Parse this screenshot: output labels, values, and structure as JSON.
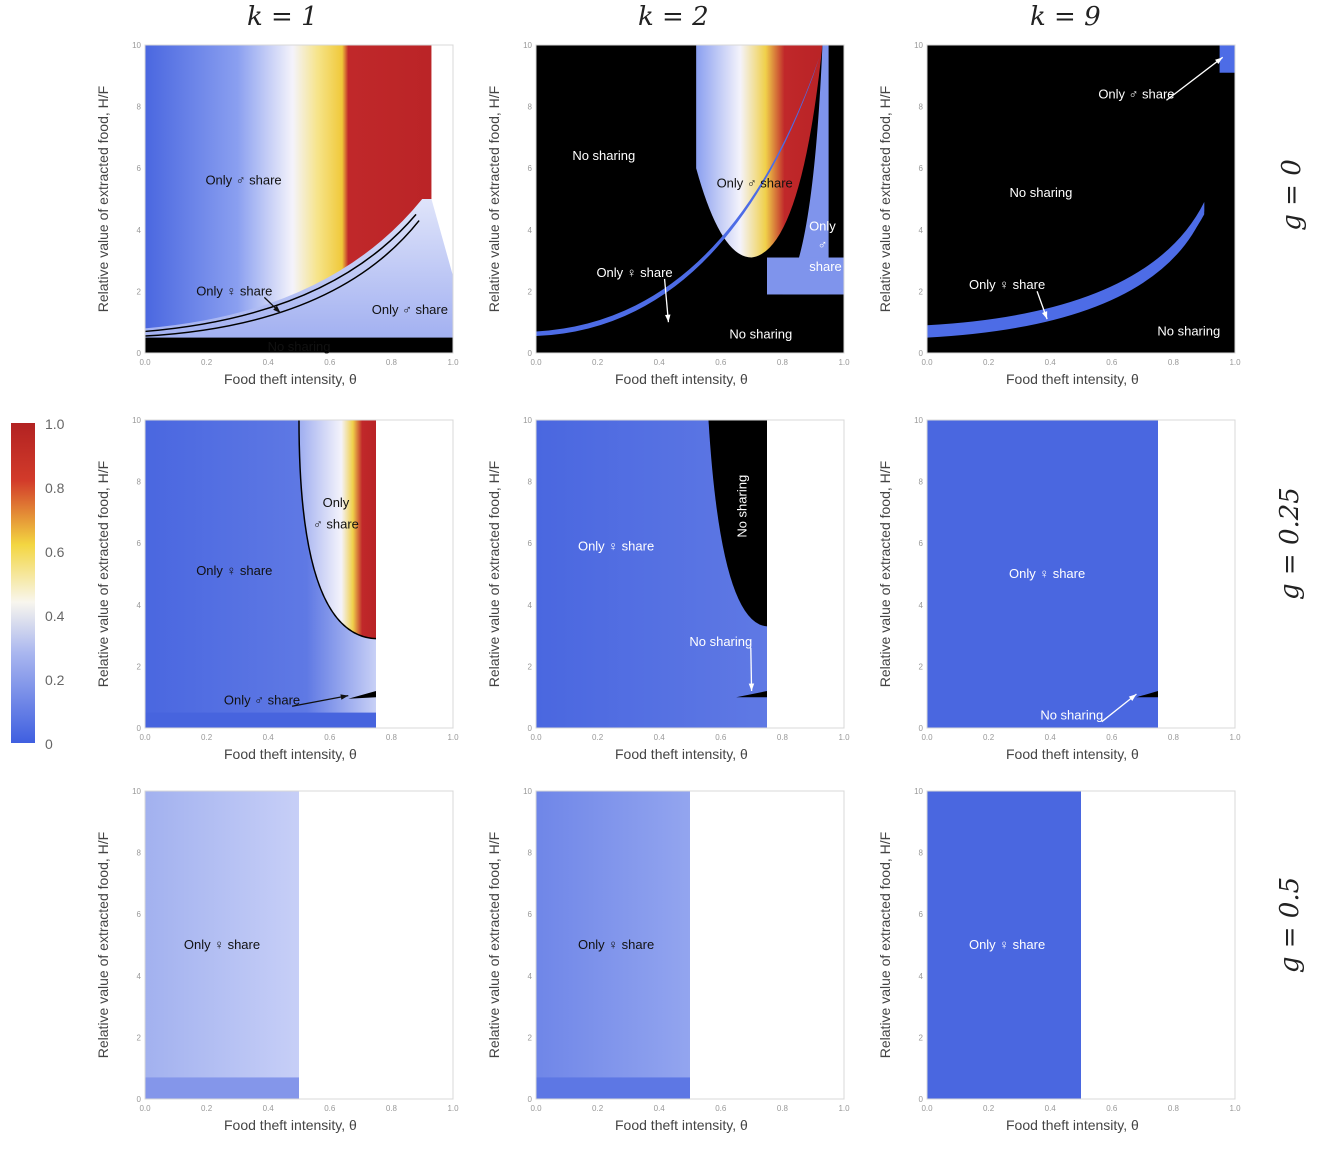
{
  "column_titles": [
    "k = 1",
    "k = 2",
    "k = 9"
  ],
  "row_titles": [
    "g = 0",
    "g = 0.25",
    "g = 0.5"
  ],
  "xlabel": "Food theft intensity, θ",
  "ylabel": "Relative value of extracted food, H/F",
  "colorbar": {
    "ticks": [
      "1.0",
      "0.8",
      "0.6",
      "0.4",
      "0.2",
      "0"
    ],
    "colors": [
      "#b22222",
      "#d23b2a",
      "#f3d641",
      "#f8f6ee",
      "#a9b6ef",
      "#3f5fe0"
    ]
  },
  "chart_data": [
    {
      "type": "heatmap",
      "k": 1,
      "g": 0,
      "xlim": [
        0,
        1
      ],
      "ylim": [
        0,
        10
      ],
      "xticks": [
        "0.0",
        "0.2",
        "0.4",
        "0.6",
        "0.8",
        "1.0"
      ],
      "yticks": [
        "0",
        "2",
        "4",
        "6",
        "8",
        "10"
      ],
      "annotations": [
        {
          "text": "Only ♂ share",
          "x": 0.32,
          "y": 5.6,
          "color": "#111"
        },
        {
          "text": "Only ♀ share",
          "x": 0.29,
          "y": 2.0,
          "color": "#111"
        },
        {
          "text": "Only ♂ share",
          "x": 0.86,
          "y": 1.4,
          "color": "#111"
        },
        {
          "text": "No sharing",
          "x": 0.5,
          "y": 0.2,
          "color": "#111"
        }
      ]
    },
    {
      "type": "heatmap",
      "k": 2,
      "g": 0,
      "xlim": [
        0,
        1
      ],
      "ylim": [
        0,
        10
      ],
      "xticks": [
        "0.0",
        "0.2",
        "0.4",
        "0.6",
        "0.8",
        "1.0"
      ],
      "yticks": [
        "0",
        "2",
        "4",
        "6",
        "8",
        "10"
      ],
      "annotations": [
        {
          "text": "No sharing",
          "x": 0.22,
          "y": 6.4,
          "color": "#fff"
        },
        {
          "text": "Only ♂ share",
          "x": 0.71,
          "y": 5.5,
          "color": "#111"
        },
        {
          "text": "Only",
          "x": 0.93,
          "y": 4.1,
          "color": "#fff"
        },
        {
          "text": "♂",
          "x": 0.93,
          "y": 3.5,
          "color": "#fff"
        },
        {
          "text": "share",
          "x": 0.94,
          "y": 2.8,
          "color": "#fff"
        },
        {
          "text": "Only ♀ share",
          "x": 0.32,
          "y": 2.6,
          "color": "#fff"
        },
        {
          "text": "No sharing",
          "x": 0.73,
          "y": 0.6,
          "color": "#fff"
        }
      ]
    },
    {
      "type": "heatmap",
      "k": 9,
      "g": 0,
      "xlim": [
        0,
        1
      ],
      "ylim": [
        0,
        10
      ],
      "xticks": [
        "0.0",
        "0.2",
        "0.4",
        "0.6",
        "0.8",
        "1.0"
      ],
      "yticks": [
        "0",
        "2",
        "4",
        "6",
        "8",
        "10"
      ],
      "annotations": [
        {
          "text": "Only ♂ share",
          "x": 0.68,
          "y": 8.4,
          "color": "#fff"
        },
        {
          "text": "No sharing",
          "x": 0.37,
          "y": 5.2,
          "color": "#fff"
        },
        {
          "text": "Only ♀ share",
          "x": 0.26,
          "y": 2.2,
          "color": "#fff"
        },
        {
          "text": "No sharing",
          "x": 0.85,
          "y": 0.7,
          "color": "#fff"
        }
      ]
    },
    {
      "type": "heatmap",
      "k": 1,
      "g": 0.25,
      "xlim": [
        0,
        1
      ],
      "ylim": [
        0,
        10
      ],
      "xticks": [
        "0.0",
        "0.2",
        "0.4",
        "0.6",
        "0.8",
        "1.0"
      ],
      "yticks": [
        "0",
        "2",
        "4",
        "6",
        "8",
        "10"
      ],
      "annotations": [
        {
          "text": "Only",
          "x": 0.62,
          "y": 7.3,
          "color": "#111"
        },
        {
          "text": "♂ share",
          "x": 0.62,
          "y": 6.6,
          "color": "#111"
        },
        {
          "text": "Only ♀ share",
          "x": 0.29,
          "y": 5.1,
          "color": "#111"
        },
        {
          "text": "Only ♂ share",
          "x": 0.38,
          "y": 0.9,
          "color": "#111"
        }
      ]
    },
    {
      "type": "heatmap",
      "k": 2,
      "g": 0.25,
      "xlim": [
        0,
        1
      ],
      "ylim": [
        0,
        10
      ],
      "xticks": [
        "0.0",
        "0.2",
        "0.4",
        "0.6",
        "0.8",
        "1.0"
      ],
      "yticks": [
        "0",
        "2",
        "4",
        "6",
        "8",
        "10"
      ],
      "annotations": [
        {
          "text": "No sharing",
          "x": 0.67,
          "y": 7.2,
          "color": "#fff",
          "rotate": true
        },
        {
          "text": "Only ♀ share",
          "x": 0.26,
          "y": 5.9,
          "color": "#fff"
        },
        {
          "text": "No sharing",
          "x": 0.6,
          "y": 2.8,
          "color": "#fff"
        }
      ]
    },
    {
      "type": "heatmap",
      "k": 9,
      "g": 0.25,
      "xlim": [
        0,
        1
      ],
      "ylim": [
        0,
        10
      ],
      "xticks": [
        "0.0",
        "0.2",
        "0.4",
        "0.6",
        "0.8",
        "1.0"
      ],
      "yticks": [
        "0",
        "2",
        "4",
        "6",
        "8",
        "10"
      ],
      "annotations": [
        {
          "text": "Only ♀ share",
          "x": 0.39,
          "y": 5.0,
          "color": "#fff"
        },
        {
          "text": "No sharing",
          "x": 0.47,
          "y": 0.4,
          "color": "#fff"
        }
      ]
    },
    {
      "type": "heatmap",
      "k": 1,
      "g": 0.5,
      "xlim": [
        0,
        1
      ],
      "ylim": [
        0,
        10
      ],
      "xticks": [
        "0.0",
        "0.2",
        "0.4",
        "0.6",
        "0.8",
        "1.0"
      ],
      "yticks": [
        "0",
        "2",
        "4",
        "6",
        "8",
        "10"
      ],
      "annotations": [
        {
          "text": "Only ♀ share",
          "x": 0.25,
          "y": 5.0,
          "color": "#111"
        }
      ]
    },
    {
      "type": "heatmap",
      "k": 2,
      "g": 0.5,
      "xlim": [
        0,
        1
      ],
      "ylim": [
        0,
        10
      ],
      "xticks": [
        "0.0",
        "0.2",
        "0.4",
        "0.6",
        "0.8",
        "1.0"
      ],
      "yticks": [
        "0",
        "2",
        "4",
        "6",
        "8",
        "10"
      ],
      "annotations": [
        {
          "text": "Only ♀ share",
          "x": 0.26,
          "y": 5.0,
          "color": "#111"
        }
      ]
    },
    {
      "type": "heatmap",
      "k": 9,
      "g": 0.5,
      "xlim": [
        0,
        1
      ],
      "ylim": [
        0,
        10
      ],
      "xticks": [
        "0.0",
        "0.2",
        "0.4",
        "0.6",
        "0.8",
        "1.0"
      ],
      "yticks": [
        "0",
        "2",
        "4",
        "6",
        "8",
        "10"
      ],
      "annotations": [
        {
          "text": "Only ♀ share",
          "x": 0.26,
          "y": 5.0,
          "color": "#fff"
        }
      ]
    }
  ]
}
